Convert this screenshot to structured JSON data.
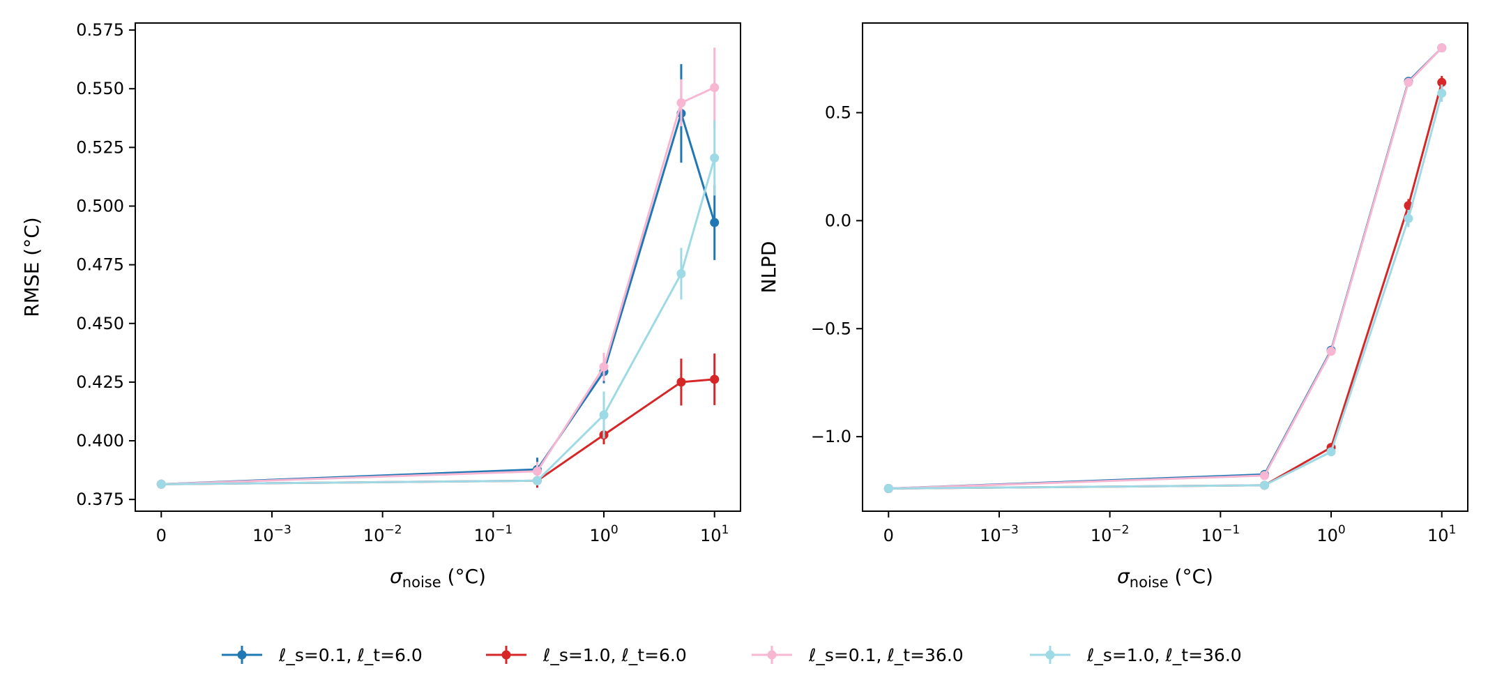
{
  "chart_data": [
    {
      "type": "line",
      "panel": "left",
      "xlabel_symbol": "σ",
      "xlabel_sub": "noise",
      "xlabel_unit": " (°C)",
      "ylabel": "RMSE (°C)",
      "x": [
        0,
        0.25,
        1,
        5,
        10
      ],
      "xscale": "symlog",
      "xticks": [
        {
          "value": 0,
          "base": "0",
          "exp": ""
        },
        {
          "value": 0.001,
          "base": "10",
          "exp": "−3"
        },
        {
          "value": 0.01,
          "base": "10",
          "exp": "−2"
        },
        {
          "value": 0.1,
          "base": "10",
          "exp": "−1"
        },
        {
          "value": 1,
          "base": "10",
          "exp": "0"
        },
        {
          "value": 10,
          "base": "10",
          "exp": "1"
        }
      ],
      "ylim": [
        0.37,
        0.578
      ],
      "yticks": [
        0.375,
        0.4,
        0.425,
        0.45,
        0.475,
        0.5,
        0.525,
        0.55,
        0.575
      ],
      "ytick_labels": [
        "0.375",
        "0.400",
        "0.425",
        "0.450",
        "0.475",
        "0.500",
        "0.525",
        "0.550",
        "0.575"
      ],
      "series": [
        {
          "name": "ℓ_s=0.1, ℓ_t=6.0",
          "color": "#1f77b4",
          "values": [
            0.3815,
            0.3878,
            0.4295,
            0.5395,
            0.493
          ],
          "errors": [
            0.001,
            0.005,
            0.005,
            0.021,
            0.016
          ]
        },
        {
          "name": "ℓ_s=1.0, ℓ_t=6.0",
          "color": "#d62728",
          "values": [
            0.3815,
            0.383,
            0.4025,
            0.425,
            0.4262
          ],
          "errors": [
            0.001,
            0.003,
            0.004,
            0.01,
            0.011
          ]
        },
        {
          "name": "ℓ_s=0.1, ℓ_t=36.0",
          "color": "#f7b6d2",
          "values": [
            0.3815,
            0.387,
            0.4315,
            0.544,
            0.5505
          ],
          "errors": [
            0.001,
            0.004,
            0.006,
            0.01,
            0.017
          ]
        },
        {
          "name": "ℓ_s=1.0, ℓ_t=36.0",
          "color": "#9edae5",
          "values": [
            0.3815,
            0.383,
            0.411,
            0.4712,
            0.5205
          ],
          "errors": [
            0.001,
            0.002,
            0.01,
            0.011,
            0.016
          ]
        }
      ]
    },
    {
      "type": "line",
      "panel": "right",
      "xlabel_symbol": "σ",
      "xlabel_sub": "noise",
      "xlabel_unit": " (°C)",
      "ylabel": "NLPD",
      "x": [
        0,
        0.25,
        1,
        5,
        10
      ],
      "xscale": "symlog",
      "xticks": [
        {
          "value": 0,
          "base": "0",
          "exp": ""
        },
        {
          "value": 0.001,
          "base": "10",
          "exp": "−3"
        },
        {
          "value": 0.01,
          "base": "10",
          "exp": "−2"
        },
        {
          "value": 0.1,
          "base": "10",
          "exp": "−1"
        },
        {
          "value": 1,
          "base": "10",
          "exp": "0"
        },
        {
          "value": 10,
          "base": "10",
          "exp": "1"
        }
      ],
      "ylim": [
        -1.345,
        0.915
      ],
      "yticks": [
        -1.0,
        -0.5,
        0.0,
        0.5
      ],
      "ytick_labels": [
        "−1.0",
        "−0.5",
        "0.0",
        "0.5"
      ],
      "series": [
        {
          "name": "ℓ_s=0.1, ℓ_t=6.0",
          "color": "#1f77b4",
          "values": [
            -1.24,
            -1.175,
            -0.6,
            0.645,
            0.8
          ],
          "errors": [
            0.006,
            0.01,
            0.012,
            0.01,
            0.01
          ]
        },
        {
          "name": "ℓ_s=1.0, ℓ_t=6.0",
          "color": "#d62728",
          "values": [
            -1.24,
            -1.225,
            -1.05,
            0.07,
            0.64
          ],
          "errors": [
            0.006,
            0.01,
            0.02,
            0.03,
            0.03
          ]
        },
        {
          "name": "ℓ_s=0.1, ℓ_t=36.0",
          "color": "#f7b6d2",
          "values": [
            -1.24,
            -1.18,
            -0.605,
            0.64,
            0.8
          ],
          "errors": [
            0.006,
            0.01,
            0.012,
            0.01,
            0.01
          ]
        },
        {
          "name": "ℓ_s=1.0, ℓ_t=36.0",
          "color": "#9edae5",
          "values": [
            -1.24,
            -1.225,
            -1.07,
            0.01,
            0.59
          ],
          "errors": [
            0.006,
            0.01,
            0.02,
            0.04,
            0.04
          ]
        }
      ]
    }
  ],
  "legend": {
    "placement": "bottom-center",
    "entries": [
      {
        "label": "ℓ_s=0.1, ℓ_t=6.0",
        "color": "#1f77b4"
      },
      {
        "label": "ℓ_s=1.0, ℓ_t=6.0",
        "color": "#d62728"
      },
      {
        "label": "ℓ_s=0.1, ℓ_t=36.0",
        "color": "#f7b6d2"
      },
      {
        "label": "ℓ_s=1.0, ℓ_t=36.0",
        "color": "#9edae5"
      }
    ]
  }
}
